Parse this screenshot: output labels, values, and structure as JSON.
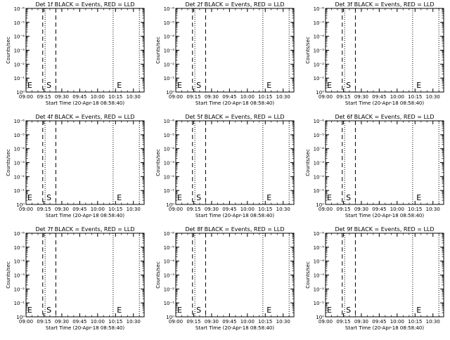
{
  "chart_data": [
    {
      "type": "line",
      "title": "Det 1f BLACK = Events, RED = LLD",
      "xlabel": "Start Time (20-Apr-18 08:58:40)",
      "ylabel": "Counts/sec",
      "x_tick_labels": [
        "09:00",
        "09:15",
        "09:30",
        "09:45",
        "10:00",
        "10:15",
        "10:30"
      ],
      "y_tick_labels": [
        "10⁰",
        "10⁻¹",
        "10⁻²",
        "10⁻³",
        "10⁻⁴",
        "10⁻⁵",
        "10⁻⁶"
      ],
      "markers": [
        {
          "label": "E",
          "x": "09:00"
        },
        {
          "label": "S",
          "x": "09:16"
        },
        {
          "label": "E",
          "x": "10:15"
        }
      ],
      "series": []
    },
    {
      "type": "line",
      "title": "Det 2f BLACK = Events, RED = LLD",
      "xlabel": "Start Time (20-Apr-18 08:58:40)",
      "ylabel": "Counts/sec",
      "x_tick_labels": [
        "09:00",
        "09:15",
        "09:30",
        "09:45",
        "10:00",
        "10:15",
        "10:30"
      ],
      "y_tick_labels": [
        "10⁰",
        "10⁻¹",
        "10⁻²",
        "10⁻³",
        "10⁻⁴",
        "10⁻⁵",
        "10⁻⁶"
      ],
      "markers": [
        {
          "label": "E",
          "x": "09:00"
        },
        {
          "label": "S",
          "x": "09:16"
        },
        {
          "label": "E",
          "x": "10:15"
        }
      ],
      "series": []
    },
    {
      "type": "line",
      "title": "Det 3f BLACK = Events, RED = LLD",
      "xlabel": "Start Time (20-Apr-18 08:58:40)",
      "ylabel": "Counts/sec",
      "x_tick_labels": [
        "09:00",
        "09:15",
        "09:30",
        "09:45",
        "10:00",
        "10:15",
        "10:30"
      ],
      "y_tick_labels": [
        "10⁰",
        "10⁻¹",
        "10⁻²",
        "10⁻³",
        "10⁻⁴",
        "10⁻⁵",
        "10⁻⁶"
      ],
      "markers": [
        {
          "label": "E",
          "x": "09:00"
        },
        {
          "label": "S",
          "x": "09:16"
        },
        {
          "label": "E",
          "x": "10:15"
        }
      ],
      "series": []
    },
    {
      "type": "line",
      "title": "Det 4f BLACK = Events, RED = LLD",
      "xlabel": "Start Time (20-Apr-18 08:58:40)",
      "ylabel": "Counts/sec",
      "x_tick_labels": [
        "09:00",
        "09:15",
        "09:30",
        "09:45",
        "10:00",
        "10:15",
        "10:30"
      ],
      "y_tick_labels": [
        "10⁰",
        "10⁻¹",
        "10⁻²",
        "10⁻³",
        "10⁻⁴",
        "10⁻⁵",
        "10⁻⁶"
      ],
      "markers": [
        {
          "label": "E",
          "x": "09:00"
        },
        {
          "label": "S",
          "x": "09:16"
        },
        {
          "label": "E",
          "x": "10:15"
        }
      ],
      "series": []
    },
    {
      "type": "line",
      "title": "Det 5f BLACK = Events, RED = LLD",
      "xlabel": "Start Time (20-Apr-18 08:58:40)",
      "ylabel": "Counts/sec",
      "x_tick_labels": [
        "09:00",
        "09:15",
        "09:30",
        "09:45",
        "10:00",
        "10:15",
        "10:30"
      ],
      "y_tick_labels": [
        "10⁰",
        "10⁻¹",
        "10⁻²",
        "10⁻³",
        "10⁻⁴",
        "10⁻⁵",
        "10⁻⁶"
      ],
      "markers": [
        {
          "label": "E",
          "x": "09:00"
        },
        {
          "label": "S",
          "x": "09:16"
        },
        {
          "label": "E",
          "x": "10:15"
        }
      ],
      "series": []
    },
    {
      "type": "line",
      "title": "Det 6f BLACK = Events, RED = LLD",
      "xlabel": "Start Time (20-Apr-18 08:58:40)",
      "ylabel": "Counts/sec",
      "x_tick_labels": [
        "09:00",
        "09:15",
        "09:30",
        "09:45",
        "10:00",
        "10:15",
        "10:30"
      ],
      "y_tick_labels": [
        "10⁰",
        "10⁻¹",
        "10⁻²",
        "10⁻³",
        "10⁻⁴",
        "10⁻⁵",
        "10⁻⁶"
      ],
      "markers": [
        {
          "label": "E",
          "x": "09:00"
        },
        {
          "label": "S",
          "x": "09:16"
        },
        {
          "label": "E",
          "x": "10:15"
        }
      ],
      "series": []
    },
    {
      "type": "line",
      "title": "Det 7f BLACK = Events, RED = LLD",
      "xlabel": "Start Time (20-Apr-18 08:58:40)",
      "ylabel": "Counts/sec",
      "x_tick_labels": [
        "09:00",
        "09:15",
        "09:30",
        "09:45",
        "10:00",
        "10:15",
        "10:30"
      ],
      "y_tick_labels": [
        "10⁰",
        "10⁻¹",
        "10⁻²",
        "10⁻³",
        "10⁻⁴",
        "10⁻⁵",
        "10⁻⁶"
      ],
      "markers": [
        {
          "label": "E",
          "x": "09:00"
        },
        {
          "label": "S",
          "x": "09:16"
        },
        {
          "label": "E",
          "x": "10:15"
        }
      ],
      "series": []
    },
    {
      "type": "line",
      "title": "Det 8f BLACK = Events, RED = LLD",
      "xlabel": "Start Time (20-Apr-18 08:58:40)",
      "ylabel": "Counts/sec",
      "x_tick_labels": [
        "09:00",
        "09:15",
        "09:30",
        "09:45",
        "10:00",
        "10:15",
        "10:30"
      ],
      "y_tick_labels": [
        "10⁰",
        "10⁻¹",
        "10⁻²",
        "10⁻³",
        "10⁻⁴",
        "10⁻⁵",
        "10⁻⁶"
      ],
      "markers": [
        {
          "label": "E",
          "x": "09:00"
        },
        {
          "label": "S",
          "x": "09:16"
        },
        {
          "label": "E",
          "x": "10:15"
        }
      ],
      "series": []
    },
    {
      "type": "line",
      "title": "Det 9f BLACK = Events, RED = LLD",
      "xlabel": "Start Time (20-Apr-18 08:58:40)",
      "ylabel": "Counts/sec",
      "x_tick_labels": [
        "09:00",
        "09:15",
        "09:30",
        "09:45",
        "10:00",
        "10:15",
        "10:30"
      ],
      "y_tick_labels": [
        "10⁰",
        "10⁻¹",
        "10⁻²",
        "10⁻³",
        "10⁻⁴",
        "10⁻⁵",
        "10⁻⁶"
      ],
      "markers": [
        {
          "label": "E",
          "x": "09:00"
        },
        {
          "label": "S",
          "x": "09:16"
        },
        {
          "label": "E",
          "x": "10:15"
        }
      ],
      "series": []
    }
  ]
}
